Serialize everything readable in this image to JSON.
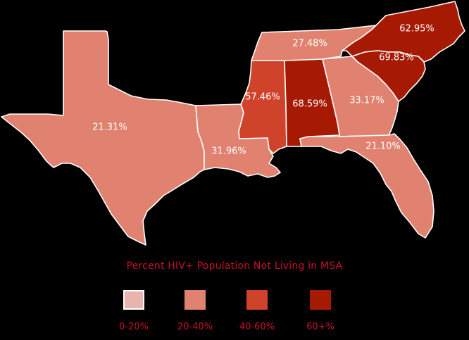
{
  "legend": {
    "title": "Percent HIV+ Population Not Living in MSA",
    "items": [
      {
        "label": "0-20%",
        "color": "#e8b4ae"
      },
      {
        "label": "20-40%",
        "color": "#e0826f"
      },
      {
        "label": "40-60%",
        "color": "#d0432b"
      },
      {
        "label": "60+%",
        "color": "#a61a04"
      }
    ]
  },
  "states": {
    "texas": {
      "value": "21.31%",
      "color": "#e0826f"
    },
    "louisiana": {
      "value": "31.96%",
      "color": "#e0826f"
    },
    "mississippi": {
      "value": "57.46%",
      "color": "#d0432b"
    },
    "alabama": {
      "value": "68.59%",
      "color": "#a61a04"
    },
    "georgia": {
      "value": "33.17%",
      "color": "#e0826f"
    },
    "florida": {
      "value": "21.10%",
      "color": "#e0826f"
    },
    "tennessee": {
      "value": "27.48%",
      "color": "#e0826f"
    },
    "south_carolina": {
      "value": "69.83%",
      "color": "#a61a04"
    },
    "north_carolina": {
      "value": "62.95%",
      "color": "#a61a04"
    }
  }
}
